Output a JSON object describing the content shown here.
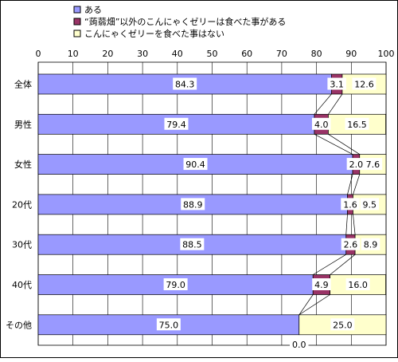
{
  "chart_data": {
    "type": "bar",
    "stacked": true,
    "orientation": "horizontal",
    "categories": [
      "全体",
      "男性",
      "女性",
      "20代",
      "30代",
      "40代",
      "その他"
    ],
    "series": [
      {
        "name": "ある",
        "color": "#9999ff",
        "values": [
          84.3,
          79.4,
          90.4,
          88.9,
          88.5,
          79.0,
          75.0
        ]
      },
      {
        "name": "“蒟蒻畑”以外のこんにゃくゼリーは食べた事がある",
        "color": "#993366",
        "values": [
          3.1,
          4.0,
          2.0,
          1.6,
          2.6,
          4.9,
          0.0
        ]
      },
      {
        "name": "こんにゃくゼリーを食べた事はない",
        "color": "#ffffcc",
        "values": [
          12.6,
          16.5,
          7.6,
          9.5,
          8.9,
          16.0,
          25.0
        ]
      }
    ],
    "data_labels": [
      [
        "84.3",
        "79.4",
        "90.4",
        "88.9",
        "88.5",
        "79.0",
        "75.0"
      ],
      [
        "3.1",
        "4.0",
        "2.0",
        "1.6",
        "2.6",
        "4.9",
        "0.0"
      ],
      [
        "12.6",
        "16.5",
        "7.6",
        "9.5",
        "8.9",
        "16.0",
        "25.0"
      ]
    ],
    "xlim": [
      0,
      100
    ],
    "xticks": [
      "0",
      "10",
      "20",
      "30",
      "40",
      "50",
      "60",
      "70",
      "80",
      "90",
      "100"
    ],
    "grid": true,
    "series_lines": true,
    "legend_position": "top"
  }
}
